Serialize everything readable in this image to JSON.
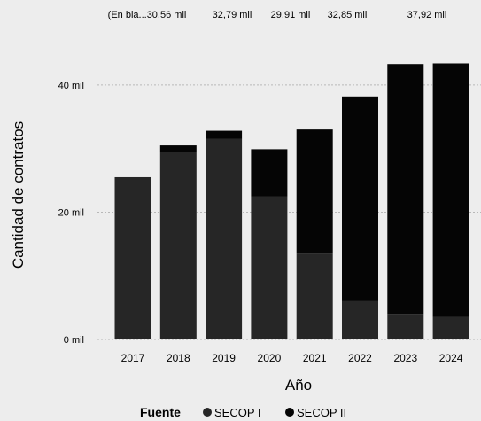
{
  "top_labels": [
    "(En bla...30,56 mil",
    "32,79 mil",
    "29,91 mil",
    "32,85 mil",
    "37,92 mil"
  ],
  "legend": {
    "title": "Fuente",
    "items": [
      "SECOP I",
      "SECOP II"
    ]
  },
  "chart_data": {
    "type": "bar",
    "stacked": true,
    "title": "",
    "xlabel": "Año",
    "ylabel": "Cantidad de contratos",
    "categories": [
      "2017",
      "2018",
      "2019",
      "2020",
      "2021",
      "2022",
      "2023",
      "2024"
    ],
    "series": [
      {
        "name": "SECOP I",
        "values": [
          25.5,
          29.5,
          31.5,
          22.5,
          13.5,
          6.0,
          4.0,
          3.5
        ]
      },
      {
        "name": "SECOP II",
        "values": [
          0.0,
          1.0,
          1.3,
          7.4,
          19.5,
          32.2,
          39.3,
          39.9
        ]
      }
    ],
    "ylim": [
      0,
      45
    ],
    "yticks": [
      0,
      20,
      40
    ],
    "ytick_labels": [
      "0 mil",
      "20 mil",
      "40 mil"
    ],
    "gridlines": true,
    "legend_position": "bottom",
    "colors": {
      "SECOP I": "#262626",
      "SECOP II": "#050505"
    }
  }
}
